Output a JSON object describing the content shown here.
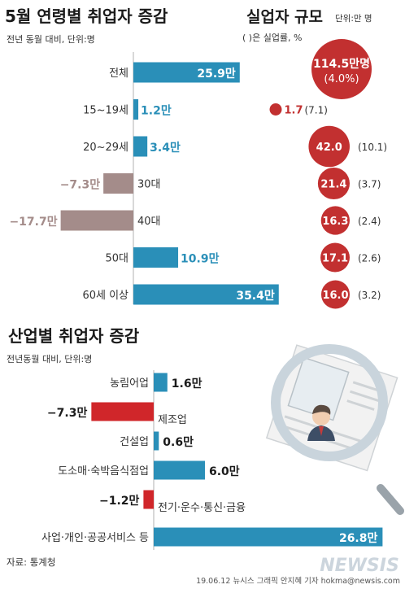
{
  "section1": {
    "title": "5월 연령별 취업자 증감",
    "subtitle": "전년 동월 대비, 단위:명"
  },
  "unemployment": {
    "title": "실업자 규모",
    "unit": "단위:만 명",
    "note": "( )은 실업률, %"
  },
  "section2": {
    "title": "산업별 취업자 증감",
    "subtitle": "전년동월 대비, 단위:명"
  },
  "source": "자료: 통계청",
  "credit": "19.06.12 뉴시스 그래픽 안지혜 기자 hokma@newsis.com",
  "watermark": "NEWSIS",
  "colors": {
    "positive": "#2a8fb8",
    "negative_age": "#a48c8a",
    "negative_industry": "#d0262a",
    "unemployment_circle": "#c23030",
    "magnifier": "#c9d4dc"
  },
  "chart_data": [
    {
      "type": "bar",
      "orientation": "horizontal",
      "title": "5월 연령별 취업자 증감",
      "categories": [
        "전체",
        "15~19세",
        "20~29세",
        "30대",
        "40대",
        "50대",
        "60세 이상"
      ],
      "values": [
        25.9,
        1.2,
        3.4,
        -7.3,
        -17.7,
        10.9,
        35.4
      ],
      "labels": [
        "25.9만",
        "1.2만",
        "3.4만",
        "-7.3만",
        "-17.7만",
        "10.9만",
        "35.4만"
      ]
    },
    {
      "type": "scatter",
      "subtype": "bubble",
      "title": "실업자 규모",
      "categories": [
        "전체",
        "15~19세",
        "20~29세",
        "30대",
        "40대",
        "50대",
        "60세 이상"
      ],
      "values": [
        114.5,
        1.7,
        42.0,
        21.4,
        16.3,
        17.1,
        16.0
      ],
      "labels": [
        "114.5만명",
        "1.7",
        "42.0",
        "21.4",
        "16.3",
        "17.1",
        "16.0"
      ],
      "rates": [
        4.0,
        7.1,
        10.1,
        3.7,
        2.4,
        2.6,
        3.2
      ],
      "rate_labels": [
        "(4.0%)",
        "(7.1)",
        "(10.1)",
        "(3.7)",
        "(2.4)",
        "(2.6)",
        "(3.2)"
      ]
    },
    {
      "type": "bar",
      "orientation": "horizontal",
      "title": "산업별 취업자 증감",
      "categories": [
        "농림어업",
        "제조업",
        "건설업",
        "도소매·숙박음식점업",
        "전기·운수·통신·금융",
        "사업·개인·공공서비스 등"
      ],
      "values": [
        1.6,
        -7.3,
        0.6,
        6.0,
        -1.2,
        26.8
      ],
      "labels": [
        "1.6만",
        "-7.3만",
        "0.6만",
        "6.0만",
        "-1.2만",
        "26.8만"
      ]
    }
  ]
}
